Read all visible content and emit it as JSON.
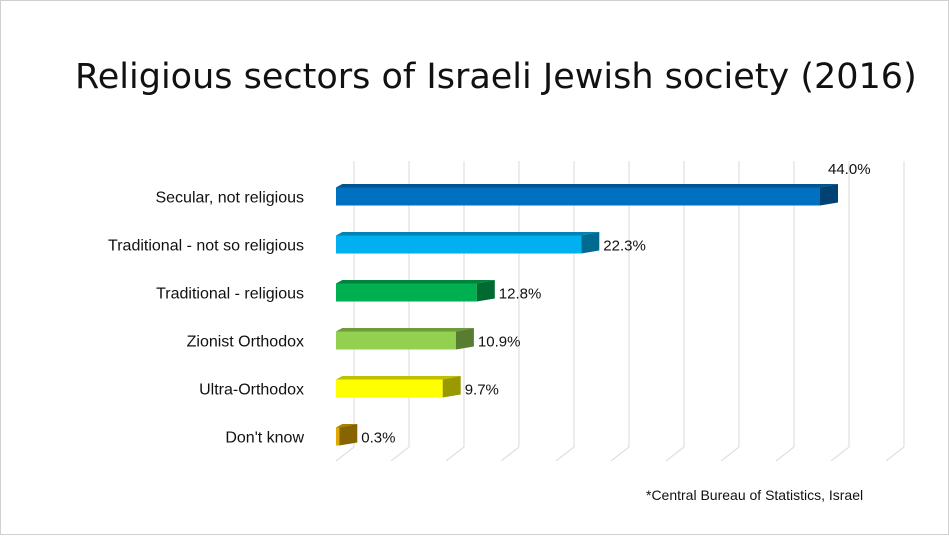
{
  "chart_data": {
    "type": "bar",
    "orientation": "horizontal",
    "title": "Religious sectors of Israeli Jewish society (2016)",
    "categories": [
      "Secular, not religious",
      "Traditional -  not so religious",
      "Traditional - religious",
      "Zionist Orthodox",
      "Ultra-Orthodox",
      "Don't know"
    ],
    "values": [
      44.0,
      22.3,
      12.8,
      10.9,
      9.7,
      0.3
    ],
    "value_labels": [
      "44.0%",
      "22.3%",
      "12.8%",
      "10.9%",
      "9.7%",
      "0.3%"
    ],
    "colors": [
      "#0070C0",
      "#00B0F0",
      "#00B050",
      "#92D050",
      "#FFFF00",
      "#E0A800"
    ],
    "xlim": [
      0,
      50
    ],
    "grid": true,
    "legend": "none",
    "style": "3d"
  },
  "footnote": "*Central Bureau of Statistics, Israel"
}
